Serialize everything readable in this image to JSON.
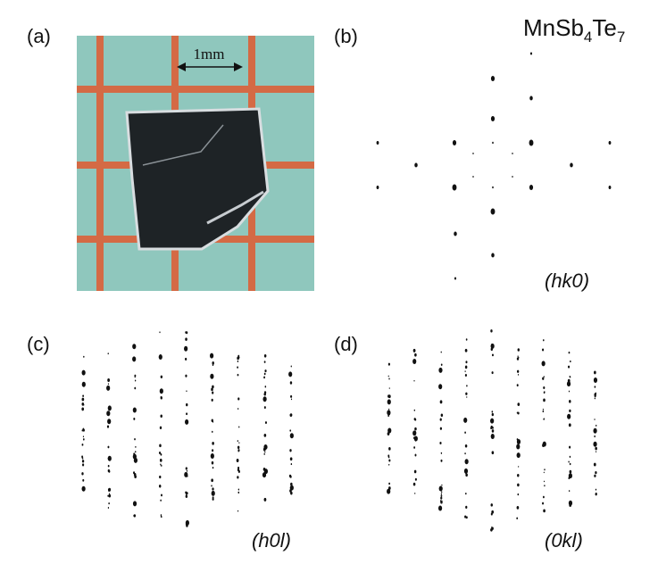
{
  "panels": {
    "a": {
      "label": "(a)",
      "scale": "1mm"
    },
    "b": {
      "label": "(b)",
      "formula": [
        "MnSb",
        "4",
        "Te",
        "7"
      ],
      "plane": "(hk0)"
    },
    "c": {
      "label": "(c)",
      "plane": "(h0l)"
    },
    "d": {
      "label": "(d)",
      "plane": "(0kl)"
    }
  }
}
